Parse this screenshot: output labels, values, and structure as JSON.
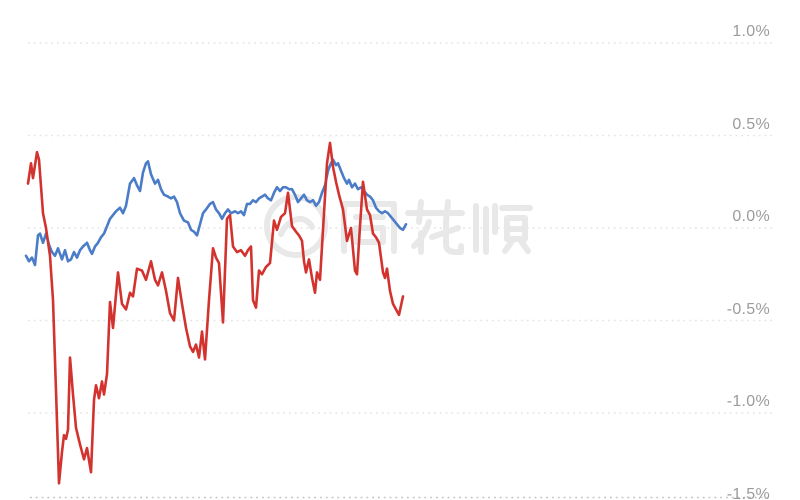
{
  "chart_data": {
    "type": "line",
    "title": "",
    "legend": "none",
    "x_axis": {
      "visible": false
    },
    "y_axis": {
      "side": "right",
      "unit": "%",
      "labels": [
        "1.0%",
        "0.5%",
        "0.0%",
        "-0.5%",
        "-1.0%",
        "-1.5%"
      ],
      "values": [
        1.0,
        0.5,
        0.0,
        -0.5,
        -1.0,
        -1.5
      ],
      "grid": "dotted"
    },
    "ylim": [
      -1.5,
      1.25
    ],
    "point_format": "[x_position_px, value_percent]",
    "series": [
      {
        "name": "blue-series",
        "color": "#4a7cc7",
        "points": [
          [
            26,
            -0.15
          ],
          [
            29,
            -0.18
          ],
          [
            32,
            -0.16
          ],
          [
            35,
            -0.2
          ],
          [
            38,
            -0.04
          ],
          [
            40,
            -0.03
          ],
          [
            43,
            -0.08
          ],
          [
            46,
            -0.03
          ],
          [
            49,
            -0.09
          ],
          [
            52,
            -0.13
          ],
          [
            55,
            -0.15
          ],
          [
            58,
            -0.11
          ],
          [
            62,
            -0.17
          ],
          [
            65,
            -0.12
          ],
          [
            68,
            -0.18
          ],
          [
            71,
            -0.17
          ],
          [
            74,
            -0.13
          ],
          [
            77,
            -0.16
          ],
          [
            80,
            -0.12
          ],
          [
            83,
            -0.1
          ],
          [
            87,
            -0.08
          ],
          [
            90,
            -0.12
          ],
          [
            92,
            -0.14
          ],
          [
            95,
            -0.1
          ],
          [
            98,
            -0.08
          ],
          [
            101,
            -0.05
          ],
          [
            104,
            -0.03
          ],
          [
            107,
            0.01
          ],
          [
            110,
            0.05
          ],
          [
            113,
            0.07
          ],
          [
            116,
            0.09
          ],
          [
            120,
            0.11
          ],
          [
            123,
            0.08
          ],
          [
            126,
            0.12
          ],
          [
            130,
            0.24
          ],
          [
            134,
            0.27
          ],
          [
            137,
            0.23
          ],
          [
            140,
            0.2
          ],
          [
            143,
            0.3
          ],
          [
            146,
            0.35
          ],
          [
            148,
            0.36
          ],
          [
            151,
            0.29
          ],
          [
            155,
            0.24
          ],
          [
            158,
            0.26
          ],
          [
            161,
            0.21
          ],
          [
            164,
            0.18
          ],
          [
            168,
            0.17
          ],
          [
            171,
            0.16
          ],
          [
            174,
            0.17
          ],
          [
            177,
            0.14
          ],
          [
            180,
            0.08
          ],
          [
            184,
            0.04
          ],
          [
            188,
            0.03
          ],
          [
            191,
            -0.01
          ],
          [
            194,
            -0.02
          ],
          [
            197,
            -0.04
          ],
          [
            200,
            0.02
          ],
          [
            203,
            0.08
          ],
          [
            206,
            0.1
          ],
          [
            210,
            0.13
          ],
          [
            213,
            0.14
          ],
          [
            216,
            0.1
          ],
          [
            219,
            0.08
          ],
          [
            222,
            0.05
          ],
          [
            225,
            0.08
          ],
          [
            228,
            0.1
          ],
          [
            231,
            0.08
          ],
          [
            235,
            0.09
          ],
          [
            238,
            0.08
          ],
          [
            241,
            0.09
          ],
          [
            244,
            0.07
          ],
          [
            247,
            0.13
          ],
          [
            250,
            0.13
          ],
          [
            253,
            0.15
          ],
          [
            256,
            0.14
          ],
          [
            259,
            0.16
          ],
          [
            262,
            0.17
          ],
          [
            265,
            0.18
          ],
          [
            268,
            0.16
          ],
          [
            271,
            0.15
          ],
          [
            274,
            0.19
          ],
          [
            277,
            0.22
          ],
          [
            280,
            0.2
          ],
          [
            283,
            0.22
          ],
          [
            286,
            0.22
          ],
          [
            289,
            0.21
          ],
          [
            292,
            0.21
          ],
          [
            295,
            0.18
          ],
          [
            298,
            0.14
          ],
          [
            301,
            0.16
          ],
          [
            304,
            0.18
          ],
          [
            307,
            0.15
          ],
          [
            310,
            0.14
          ],
          [
            313,
            0.15
          ],
          [
            316,
            0.12
          ],
          [
            319,
            0.14
          ],
          [
            322,
            0.19
          ],
          [
            325,
            0.23
          ],
          [
            328,
            0.31
          ],
          [
            331,
            0.35
          ],
          [
            333,
            0.37
          ],
          [
            336,
            0.34
          ],
          [
            338,
            0.35
          ],
          [
            341,
            0.31
          ],
          [
            344,
            0.27
          ],
          [
            347,
            0.24
          ],
          [
            349,
            0.26
          ],
          [
            352,
            0.22
          ],
          [
            355,
            0.24
          ],
          [
            358,
            0.21
          ],
          [
            361,
            0.22
          ],
          [
            364,
            0.2
          ],
          [
            367,
            0.18
          ],
          [
            370,
            0.17
          ],
          [
            373,
            0.15
          ],
          [
            376,
            0.11
          ],
          [
            379,
            0.09
          ],
          [
            382,
            0.08
          ],
          [
            385,
            0.09
          ],
          [
            388,
            0.08
          ],
          [
            391,
            0.06
          ],
          [
            394,
            0.04
          ],
          [
            397,
            0.02
          ],
          [
            400,
            0.0
          ],
          [
            403,
            -0.01
          ],
          [
            406,
            0.02
          ]
        ]
      },
      {
        "name": "red-series",
        "color": "#d2332e",
        "points": [
          [
            28,
            0.24
          ],
          [
            31,
            0.35
          ],
          [
            33,
            0.27
          ],
          [
            37,
            0.41
          ],
          [
            39,
            0.37
          ],
          [
            43,
            0.08
          ],
          [
            46,
            0.0
          ],
          [
            50,
            -0.15
          ],
          [
            53,
            -0.39
          ],
          [
            56,
            -0.88
          ],
          [
            59,
            -1.38
          ],
          [
            62,
            -1.21
          ],
          [
            64,
            -1.12
          ],
          [
            66,
            -1.14
          ],
          [
            68,
            -1.09
          ],
          [
            70,
            -0.7
          ],
          [
            73,
            -0.9
          ],
          [
            76,
            -1.08
          ],
          [
            80,
            -1.17
          ],
          [
            84,
            -1.25
          ],
          [
            87,
            -1.19
          ],
          [
            91,
            -1.32
          ],
          [
            94,
            -0.93
          ],
          [
            96,
            -0.85
          ],
          [
            99,
            -0.92
          ],
          [
            102,
            -0.83
          ],
          [
            104,
            -0.9
          ],
          [
            107,
            -0.79
          ],
          [
            110,
            -0.4
          ],
          [
            113,
            -0.54
          ],
          [
            118,
            -0.24
          ],
          [
            122,
            -0.41
          ],
          [
            126,
            -0.44
          ],
          [
            130,
            -0.35
          ],
          [
            133,
            -0.37
          ],
          [
            137,
            -0.22
          ],
          [
            142,
            -0.23
          ],
          [
            146,
            -0.28
          ],
          [
            151,
            -0.18
          ],
          [
            155,
            -0.28
          ],
          [
            158,
            -0.31
          ],
          [
            162,
            -0.24
          ],
          [
            166,
            -0.34
          ],
          [
            170,
            -0.46
          ],
          [
            174,
            -0.5
          ],
          [
            178,
            -0.27
          ],
          [
            182,
            -0.41
          ],
          [
            186,
            -0.54
          ],
          [
            190,
            -0.64
          ],
          [
            193,
            -0.67
          ],
          [
            196,
            -0.63
          ],
          [
            199,
            -0.7
          ],
          [
            202,
            -0.56
          ],
          [
            205,
            -0.71
          ],
          [
            209,
            -0.39
          ],
          [
            213,
            -0.11
          ],
          [
            216,
            -0.16
          ],
          [
            219,
            -0.19
          ],
          [
            223,
            -0.51
          ],
          [
            227,
            0.05
          ],
          [
            230,
            0.07
          ],
          [
            233,
            -0.1
          ],
          [
            237,
            -0.13
          ],
          [
            241,
            -0.12
          ],
          [
            245,
            -0.15
          ],
          [
            248,
            -0.12
          ],
          [
            251,
            -0.1
          ],
          [
            253,
            -0.39
          ],
          [
            256,
            -0.43
          ],
          [
            259,
            -0.23
          ],
          [
            262,
            -0.25
          ],
          [
            266,
            -0.21
          ],
          [
            270,
            -0.19
          ],
          [
            274,
            0.04
          ],
          [
            277,
            -0.01
          ],
          [
            281,
            0.06
          ],
          [
            285,
            0.08
          ],
          [
            288,
            0.19
          ],
          [
            292,
            0.01
          ],
          [
            296,
            -0.02
          ],
          [
            299,
            -0.04
          ],
          [
            302,
            -0.07
          ],
          [
            304,
            -0.18
          ],
          [
            306,
            -0.24
          ],
          [
            309,
            -0.17
          ],
          [
            312,
            -0.27
          ],
          [
            315,
            -0.35
          ],
          [
            317,
            -0.24
          ],
          [
            320,
            -0.28
          ],
          [
            323,
            -0.01
          ],
          [
            327,
            0.35
          ],
          [
            330,
            0.46
          ],
          [
            333,
            0.33
          ],
          [
            336,
            0.25
          ],
          [
            339,
            0.18
          ],
          [
            343,
            0.1
          ],
          [
            347,
            -0.07
          ],
          [
            351,
            0.0
          ],
          [
            355,
            -0.23
          ],
          [
            357,
            -0.25
          ],
          [
            360,
            0.01
          ],
          [
            363,
            0.25
          ],
          [
            367,
            0.1
          ],
          [
            370,
            0.07
          ],
          [
            373,
            -0.03
          ],
          [
            376,
            -0.05
          ],
          [
            379,
            -0.08
          ],
          [
            383,
            -0.24
          ],
          [
            385,
            -0.27
          ],
          [
            387,
            -0.22
          ],
          [
            390,
            -0.34
          ],
          [
            393,
            -0.41
          ],
          [
            397,
            -0.45
          ],
          [
            399,
            -0.47
          ],
          [
            403,
            -0.37
          ]
        ]
      }
    ]
  },
  "watermark": {
    "text": "同花顺",
    "color": "#e8e8e8"
  },
  "colors": {
    "background": "#ffffff",
    "grid": "#e4e4e4",
    "grid_bottom": "#c2c2c2",
    "axis_label": "#9b9b9b",
    "red_series": "#d2332e",
    "blue_series": "#4a7cc7"
  }
}
